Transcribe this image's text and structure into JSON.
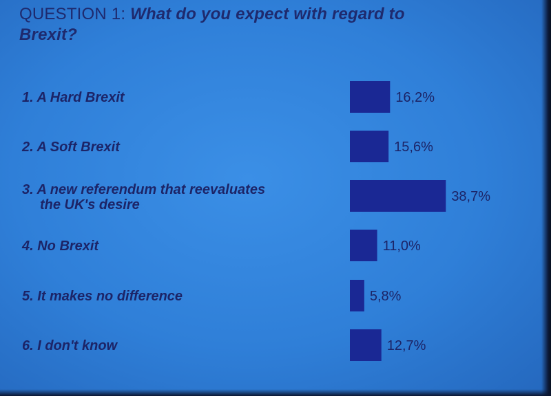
{
  "title_question": "QUESTION 1:",
  "title_text": "What do you expect with regard to Brexit?",
  "title_line1_rest": "What do you expect with regard to",
  "title_line2": "Brexit?",
  "chart_data": {
    "type": "bar",
    "orientation": "horizontal",
    "categories": [
      "1. A Hard Brexit",
      "2. A Soft Brexit",
      "3. A new referendum that reevaluates the UK's desire",
      "4. No Brexit",
      "5. It makes no difference",
      "6. I don't know"
    ],
    "category_lines": [
      [
        "1. A Hard Brexit"
      ],
      [
        "2. A Soft Brexit"
      ],
      [
        "3. A new referendum that reevaluates",
        "the UK's desire"
      ],
      [
        "4. No Brexit"
      ],
      [
        "5. It makes no difference"
      ],
      [
        "6. I don't know"
      ]
    ],
    "values": [
      16.2,
      15.6,
      38.7,
      11.0,
      5.8,
      12.7
    ],
    "value_labels": [
      "16,2%",
      "15,6%",
      "38,7%",
      "11,0%",
      "5,8%",
      "12,7%"
    ],
    "unit": "%",
    "bar_color": "#1a2894",
    "background_color": "#2f7fd8",
    "text_color": "#1c2467"
  }
}
